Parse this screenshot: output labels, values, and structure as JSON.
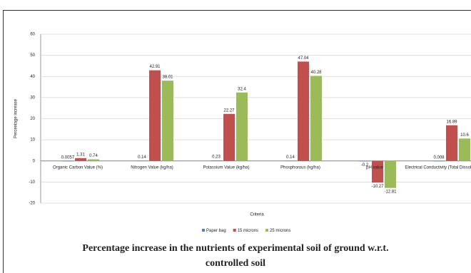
{
  "chart_data": {
    "type": "bar",
    "caption": "Percentage increase in the nutrients of experimental soil of ground w.r.t. controlled soil",
    "xlabel": "Criteria",
    "ylabel": "Percentage increase",
    "categories": [
      "Organic Carbon Value (%)",
      "Nitrogen Value (kg/ha)",
      "Potassium Value (kg/ha)",
      "Phosphorous (kg/ha)",
      "pH value",
      "Electrical Conductivity (Total Dissolved Matter)"
    ],
    "series": [
      {
        "name": "Paper bag",
        "color": "#4f81bd",
        "values": [
          0.0057,
          0.14,
          0.23,
          0.14,
          -0.2,
          0.008
        ]
      },
      {
        "name": "15 microns",
        "color": "#c0504d",
        "values": [
          1.31,
          42.91,
          22.27,
          47.04,
          -10.27,
          16.89
        ]
      },
      {
        "name": "25 microns",
        "color": "#9bbb59",
        "values": [
          0.74,
          38.01,
          32.4,
          40.28,
          -12.81,
          10.6
        ]
      }
    ],
    "ylim": [
      -20,
      60
    ],
    "yticks": [
      -20,
      -10,
      0,
      10,
      20,
      30,
      40,
      50,
      60
    ],
    "grid": true
  }
}
